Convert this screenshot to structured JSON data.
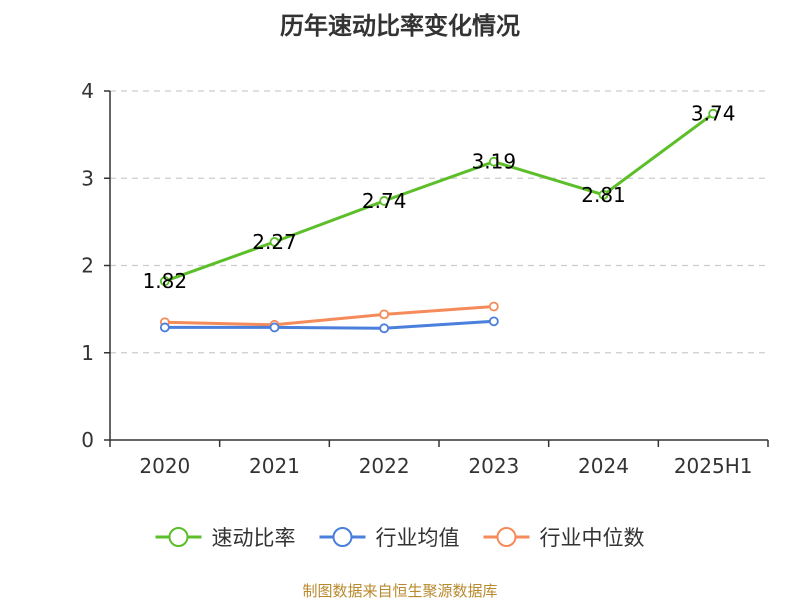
{
  "chart_data": {
    "type": "line",
    "title": "历年速动比率变化情况",
    "categories": [
      "2020",
      "2021",
      "2022",
      "2023",
      "2024",
      "2025H1"
    ],
    "ylim": [
      0,
      4
    ],
    "yticks": [
      0,
      1,
      2,
      3,
      4
    ],
    "grid": true,
    "legend_position": "bottom",
    "series": [
      {
        "name": "速动比率",
        "color": "#5cbf2a",
        "values": [
          1.82,
          2.27,
          2.74,
          3.19,
          2.81,
          3.74
        ],
        "labels": [
          "1.82",
          "2.27",
          "2.74",
          "3.19",
          "2.81",
          "3.74"
        ]
      },
      {
        "name": "行业均值",
        "color": "#4a7fdb",
        "values": [
          1.29,
          1.29,
          1.28,
          1.36,
          null,
          null
        ]
      },
      {
        "name": "行业中位数",
        "color": "#f58b5a",
        "values": [
          1.35,
          1.32,
          1.44,
          1.53,
          null,
          null
        ]
      }
    ]
  },
  "footer": "制图数据来自恒生聚源数据库"
}
